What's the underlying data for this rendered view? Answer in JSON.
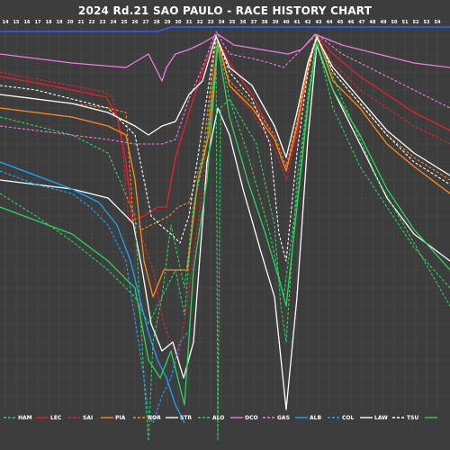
{
  "title": "2024 Rd.21 SAO PAULO - RACE HISTORY CHART",
  "chart_data": {
    "type": "line",
    "laps": [
      14,
      15,
      16,
      17,
      18,
      19,
      20,
      21,
      22,
      23,
      24,
      25,
      26,
      27,
      28,
      29,
      30,
      31,
      32,
      33,
      34,
      35,
      36,
      37,
      38,
      39,
      40,
      41,
      42,
      43,
      44,
      45,
      46,
      47,
      48,
      49,
      50,
      51,
      52,
      53,
      54
    ],
    "series": [
      {
        "name": "HAM",
        "color": "#2bd45a",
        "dash": "dashed"
      },
      {
        "name": "LEC",
        "color": "#e8202a",
        "dash": "solid"
      },
      {
        "name": "SAI",
        "color": "#e8202a",
        "dash": "dashed"
      },
      {
        "name": "PIA",
        "color": "#ff8a1f",
        "dash": "solid"
      },
      {
        "name": "NOR",
        "color": "#ff8a1f",
        "dash": "dashed"
      },
      {
        "name": "STR",
        "color": "#ffffff",
        "dash": "solid"
      },
      {
        "name": "ALO",
        "color": "#2bd45a",
        "dash": "dashed"
      },
      {
        "name": "OCO",
        "color": "#f07be0",
        "dash": "solid"
      },
      {
        "name": "GAS",
        "color": "#f07be0",
        "dash": "dashed"
      },
      {
        "name": "ALB",
        "color": "#1aa3ff",
        "dash": "solid"
      },
      {
        "name": "COL",
        "color": "#1aa3ff",
        "dash": "dashed"
      },
      {
        "name": "LAW",
        "color": "#ffffff",
        "dash": "solid"
      },
      {
        "name": "TSU",
        "color": "#ffffff",
        "dash": "dashed"
      },
      {
        "name": "",
        "color": "#2bd45a",
        "dash": "solid"
      }
    ],
    "grid": true,
    "legend": "bottom"
  }
}
